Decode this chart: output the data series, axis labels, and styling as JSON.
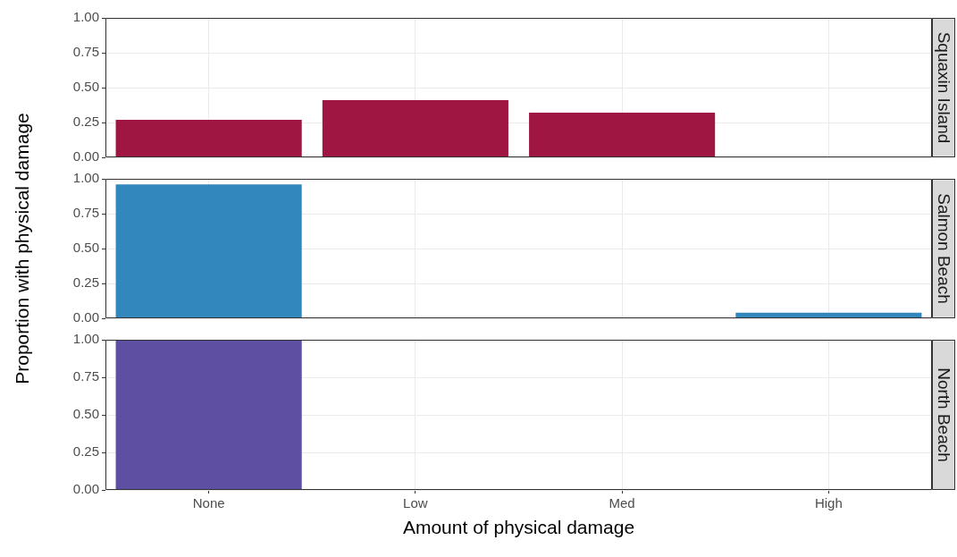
{
  "chart_data": [
    {
      "type": "bar",
      "title": "Squaxin Island",
      "categories": [
        "None",
        "Low",
        "Med",
        "High"
      ],
      "values": [
        0.27,
        0.41,
        0.32,
        null
      ],
      "color": "#9e1641",
      "ylim": [
        0,
        1
      ],
      "yticks": [
        {
          "value": 0,
          "label": "0.00"
        },
        {
          "value": 0.25,
          "label": "0.25"
        },
        {
          "value": 0.5,
          "label": "0.50"
        },
        {
          "value": 0.75,
          "label": "0.75"
        },
        {
          "value": 1,
          "label": "1.00"
        }
      ],
      "grid": true,
      "legend": false,
      "tick_labels": "y"
    },
    {
      "type": "bar",
      "title": "Salmon Beach",
      "ylabel": "Proportion with physical damage",
      "categories": [
        "None",
        "Low",
        "Med",
        "High"
      ],
      "values": [
        0.96,
        null,
        null,
        0.04
      ],
      "color": "#3288bd",
      "ylim": [
        0,
        1
      ],
      "yticks": [
        {
          "value": 0,
          "label": "0.00"
        },
        {
          "value": 0.25,
          "label": "0.25"
        },
        {
          "value": 0.5,
          "label": "0.50"
        },
        {
          "value": 0.75,
          "label": "0.75"
        },
        {
          "value": 1,
          "label": "1.00"
        }
      ],
      "grid": true,
      "legend": false,
      "tick_labels": "y"
    },
    {
      "type": "bar",
      "title": "North Beach",
      "xlabel": "Amount of physical damage",
      "categories": [
        "None",
        "Low",
        "Med",
        "High"
      ],
      "values": [
        1.0,
        null,
        null,
        null
      ],
      "color": "#5e4fa2",
      "ylim": [
        0,
        1
      ],
      "yticks": [
        {
          "value": 0,
          "label": "0.00"
        },
        {
          "value": 0.25,
          "label": "0.25"
        },
        {
          "value": 0.5,
          "label": "0.50"
        },
        {
          "value": 0.75,
          "label": "0.75"
        },
        {
          "value": 1,
          "label": "1.00"
        }
      ],
      "grid": true,
      "legend": false
    }
  ]
}
